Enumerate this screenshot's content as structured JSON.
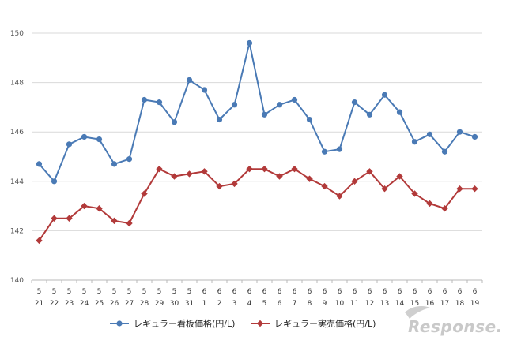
{
  "chart_data": {
    "type": "line",
    "title": "",
    "xlabel": "",
    "ylabel": "",
    "ylim": [
      140,
      150
    ],
    "yticks": [
      140,
      142,
      144,
      146,
      148,
      150
    ],
    "categories": [
      {
        "month": "5",
        "day": "21"
      },
      {
        "month": "5",
        "day": "22"
      },
      {
        "month": "5",
        "day": "23"
      },
      {
        "month": "5",
        "day": "24"
      },
      {
        "month": "5",
        "day": "25"
      },
      {
        "month": "5",
        "day": "26"
      },
      {
        "month": "5",
        "day": "27"
      },
      {
        "month": "5",
        "day": "28"
      },
      {
        "month": "5",
        "day": "29"
      },
      {
        "month": "5",
        "day": "30"
      },
      {
        "month": "5",
        "day": "31"
      },
      {
        "month": "6",
        "day": "1"
      },
      {
        "month": "6",
        "day": "2"
      },
      {
        "month": "6",
        "day": "3"
      },
      {
        "month": "6",
        "day": "4"
      },
      {
        "month": "6",
        "day": "5"
      },
      {
        "month": "6",
        "day": "6"
      },
      {
        "month": "6",
        "day": "7"
      },
      {
        "month": "6",
        "day": "8"
      },
      {
        "month": "6",
        "day": "9"
      },
      {
        "month": "6",
        "day": "10"
      },
      {
        "month": "6",
        "day": "11"
      },
      {
        "month": "6",
        "day": "12"
      },
      {
        "month": "6",
        "day": "13"
      },
      {
        "month": "6",
        "day": "14"
      },
      {
        "month": "6",
        "day": "15"
      },
      {
        "month": "6",
        "day": "16"
      },
      {
        "month": "6",
        "day": "17"
      },
      {
        "month": "6",
        "day": "18"
      },
      {
        "month": "6",
        "day": "19"
      }
    ],
    "series": [
      {
        "name": "レギュラー看板価格(円/L)",
        "color": "#4a7ab5",
        "marker": "circle",
        "values": [
          144.7,
          144.0,
          145.5,
          145.8,
          145.7,
          144.7,
          144.9,
          147.3,
          147.2,
          146.4,
          148.1,
          147.7,
          146.5,
          147.1,
          149.6,
          146.7,
          147.1,
          147.3,
          146.5,
          145.2,
          145.3,
          147.2,
          146.7,
          147.5,
          146.8,
          145.6,
          145.9,
          145.2,
          146.0,
          145.8
        ]
      },
      {
        "name": "レギュラー実売価格(円/L)",
        "color": "#b23a3a",
        "marker": "diamond",
        "values": [
          141.6,
          142.5,
          142.5,
          143.0,
          142.9,
          142.4,
          142.3,
          143.5,
          144.5,
          144.2,
          144.3,
          144.4,
          143.8,
          143.9,
          144.5,
          144.5,
          144.2,
          144.5,
          144.1,
          143.8,
          143.4,
          144.0,
          144.4,
          143.7,
          144.2,
          143.5,
          143.1,
          142.9,
          143.7,
          143.7
        ]
      }
    ],
    "legend_position": "bottom-center",
    "grid": true
  },
  "watermark": {
    "text": "Response."
  }
}
